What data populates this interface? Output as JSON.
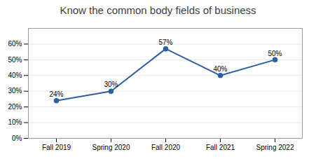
{
  "chart_data": {
    "type": "line",
    "title": "Know the common body fields of business",
    "categories": [
      "Fall 2019",
      "Spring 2020",
      "Fall 2020",
      "Fall 2021",
      "Spring 2022"
    ],
    "values": [
      24,
      30,
      57,
      40,
      50
    ],
    "value_labels": [
      "24%",
      "30%",
      "57%",
      "40%",
      "50%"
    ],
    "data_labels": true,
    "color": "#2E5FA3",
    "marker": "circle",
    "ylim": [
      0,
      70
    ],
    "yticks": [
      {
        "value": 0,
        "label": "0%"
      },
      {
        "value": 10,
        "label": "10%"
      },
      {
        "value": 20,
        "label": "20%"
      },
      {
        "value": 30,
        "label": "30%"
      },
      {
        "value": 40,
        "label": "40%"
      },
      {
        "value": 50,
        "label": "50%"
      },
      {
        "value": 60,
        "label": "60%"
      }
    ],
    "grid": true
  }
}
